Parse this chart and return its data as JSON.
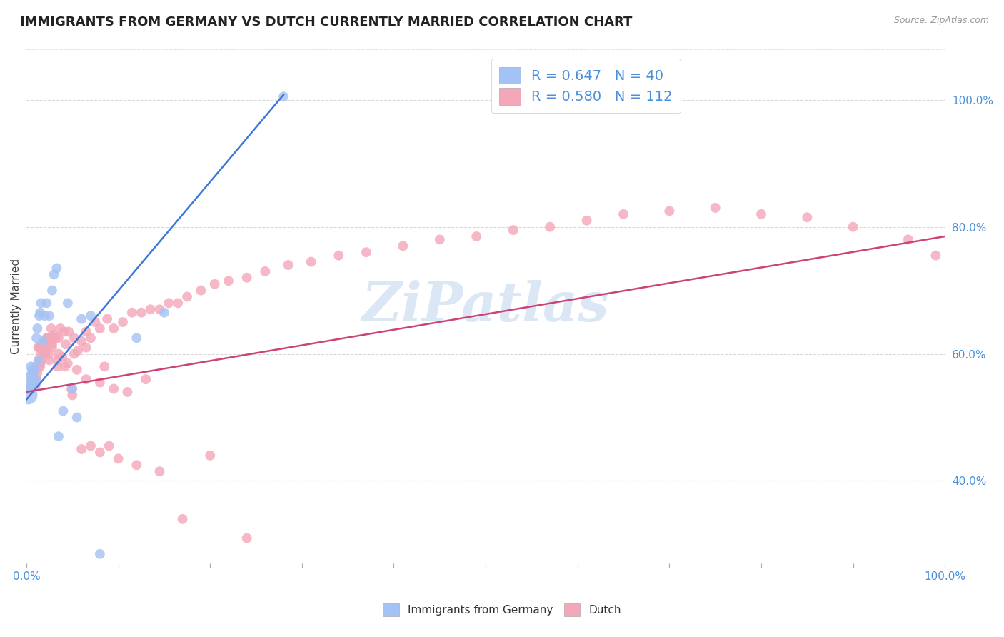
{
  "title": "IMMIGRANTS FROM GERMANY VS DUTCH CURRENTLY MARRIED CORRELATION CHART",
  "source": "Source: ZipAtlas.com",
  "ylabel": "Currently Married",
  "xlim": [
    0.0,
    1.0
  ],
  "ylim": [
    0.27,
    1.08
  ],
  "legend_blue_label": "R = 0.647   N = 40",
  "legend_pink_label": "R = 0.580   N = 112",
  "watermark": "ZiPatlas",
  "blue_color": "#a4c2f4",
  "pink_color": "#f4a7b9",
  "blue_line_color": "#3c78d8",
  "pink_line_color": "#cc4477",
  "blue_scatter_x": [
    0.002,
    0.003,
    0.004,
    0.004,
    0.005,
    0.005,
    0.005,
    0.006,
    0.006,
    0.007,
    0.007,
    0.008,
    0.008,
    0.009,
    0.009,
    0.01,
    0.011,
    0.012,
    0.013,
    0.014,
    0.015,
    0.016,
    0.018,
    0.02,
    0.022,
    0.025,
    0.028,
    0.03,
    0.033,
    0.035,
    0.04,
    0.045,
    0.05,
    0.055,
    0.06,
    0.07,
    0.08,
    0.12,
    0.15,
    0.28
  ],
  "blue_scatter_y": [
    0.535,
    0.545,
    0.545,
    0.565,
    0.555,
    0.565,
    0.58,
    0.56,
    0.575,
    0.56,
    0.575,
    0.555,
    0.575,
    0.555,
    0.575,
    0.56,
    0.625,
    0.64,
    0.59,
    0.66,
    0.665,
    0.68,
    0.62,
    0.66,
    0.68,
    0.66,
    0.7,
    0.725,
    0.735,
    0.47,
    0.51,
    0.68,
    0.545,
    0.5,
    0.655,
    0.66,
    0.285,
    0.625,
    0.665,
    1.005
  ],
  "blue_scatter_sizes": [
    350,
    120,
    100,
    100,
    100,
    100,
    100,
    100,
    100,
    100,
    100,
    100,
    100,
    100,
    100,
    100,
    100,
    100,
    100,
    100,
    100,
    100,
    100,
    100,
    100,
    100,
    100,
    100,
    100,
    100,
    100,
    100,
    100,
    100,
    100,
    100,
    100,
    100,
    100,
    100
  ],
  "pink_scatter_x": [
    0.003,
    0.004,
    0.005,
    0.006,
    0.007,
    0.008,
    0.009,
    0.01,
    0.01,
    0.011,
    0.012,
    0.013,
    0.013,
    0.014,
    0.015,
    0.015,
    0.016,
    0.017,
    0.018,
    0.019,
    0.02,
    0.021,
    0.022,
    0.023,
    0.024,
    0.025,
    0.026,
    0.027,
    0.028,
    0.029,
    0.03,
    0.032,
    0.034,
    0.035,
    0.037,
    0.039,
    0.041,
    0.043,
    0.046,
    0.049,
    0.052,
    0.056,
    0.06,
    0.065,
    0.07,
    0.075,
    0.08,
    0.088,
    0.095,
    0.105,
    0.115,
    0.125,
    0.135,
    0.145,
    0.155,
    0.165,
    0.175,
    0.19,
    0.205,
    0.22,
    0.24,
    0.26,
    0.285,
    0.31,
    0.34,
    0.37,
    0.41,
    0.45,
    0.49,
    0.53,
    0.57,
    0.61,
    0.65,
    0.7,
    0.75,
    0.8,
    0.85,
    0.9,
    0.96,
    0.99,
    0.015,
    0.02,
    0.025,
    0.035,
    0.045,
    0.055,
    0.065,
    0.08,
    0.095,
    0.11,
    0.13,
    0.05,
    0.06,
    0.07,
    0.08,
    0.09,
    0.1,
    0.12,
    0.145,
    0.17,
    0.2,
    0.24,
    0.014,
    0.017,
    0.02,
    0.023,
    0.028,
    0.034,
    0.042,
    0.052,
    0.065,
    0.085
  ],
  "pink_scatter_y": [
    0.545,
    0.545,
    0.545,
    0.555,
    0.57,
    0.565,
    0.555,
    0.55,
    0.58,
    0.56,
    0.57,
    0.58,
    0.61,
    0.59,
    0.58,
    0.61,
    0.6,
    0.59,
    0.61,
    0.6,
    0.62,
    0.605,
    0.625,
    0.625,
    0.6,
    0.625,
    0.625,
    0.64,
    0.615,
    0.625,
    0.63,
    0.625,
    0.58,
    0.625,
    0.64,
    0.595,
    0.635,
    0.615,
    0.635,
    0.545,
    0.625,
    0.605,
    0.62,
    0.635,
    0.625,
    0.65,
    0.64,
    0.655,
    0.64,
    0.65,
    0.665,
    0.665,
    0.67,
    0.67,
    0.68,
    0.68,
    0.69,
    0.7,
    0.71,
    0.715,
    0.72,
    0.73,
    0.74,
    0.745,
    0.755,
    0.76,
    0.77,
    0.78,
    0.785,
    0.795,
    0.8,
    0.81,
    0.82,
    0.825,
    0.83,
    0.82,
    0.815,
    0.8,
    0.78,
    0.755,
    0.585,
    0.6,
    0.59,
    0.6,
    0.585,
    0.575,
    0.56,
    0.555,
    0.545,
    0.54,
    0.56,
    0.535,
    0.45,
    0.455,
    0.445,
    0.455,
    0.435,
    0.425,
    0.415,
    0.34,
    0.44,
    0.31,
    0.61,
    0.615,
    0.61,
    0.615,
    0.61,
    0.59,
    0.58,
    0.6,
    0.61,
    0.58
  ],
  "pink_scatter_sizes": [
    100,
    100,
    100,
    100,
    100,
    100,
    100,
    100,
    100,
    100,
    100,
    100,
    100,
    100,
    100,
    100,
    100,
    100,
    100,
    100,
    100,
    100,
    100,
    100,
    100,
    100,
    100,
    100,
    100,
    100,
    100,
    100,
    100,
    100,
    100,
    100,
    100,
    100,
    100,
    100,
    100,
    100,
    100,
    100,
    100,
    100,
    100,
    100,
    100,
    100,
    100,
    100,
    100,
    100,
    100,
    100,
    100,
    100,
    100,
    100,
    100,
    100,
    100,
    100,
    100,
    100,
    100,
    100,
    100,
    100,
    100,
    100,
    100,
    100,
    100,
    100,
    100,
    100,
    100,
    100,
    100,
    100,
    100,
    100,
    100,
    100,
    100,
    100,
    100,
    100,
    100,
    100,
    100,
    100,
    100,
    100,
    100,
    100,
    100,
    100,
    100,
    100,
    100,
    100,
    100,
    100,
    100,
    100,
    100,
    100,
    100,
    100
  ],
  "blue_trend_x": [
    0.0,
    0.28
  ],
  "blue_trend_y": [
    0.528,
    1.008
  ],
  "pink_trend_x": [
    0.0,
    1.0
  ],
  "pink_trend_y": [
    0.54,
    0.785
  ],
  "grid_color": "#d9d9d9",
  "background_color": "#ffffff",
  "title_fontsize": 13,
  "ylabel_fontsize": 11,
  "tick_fontsize": 11,
  "legend_fontsize": 14,
  "watermark_color": "#c5d8f0",
  "watermark_fontsize": 55,
  "right_ytick_values": [
    0.4,
    0.6,
    0.8,
    1.0
  ],
  "right_ytick_labels": [
    "40.0%",
    "60.0%",
    "80.0%",
    "100.0%"
  ]
}
